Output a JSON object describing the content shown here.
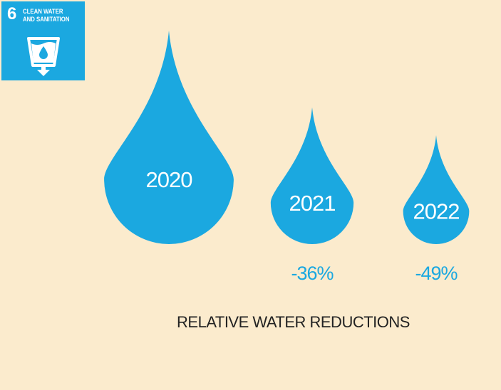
{
  "badge": {
    "number": "6",
    "title_line1": "CLEAN WATER",
    "title_line2": "AND SANITATION",
    "icon": "water-glass-icon",
    "color": "#1ba8e0"
  },
  "chart_data": {
    "type": "bar",
    "style": "water-drop pictograph",
    "title": "RELATIVE WATER REDUCTIONS",
    "categories": [
      "2020",
      "2021",
      "2022"
    ],
    "values": [
      100,
      64,
      51
    ],
    "change_labels": [
      "",
      "-36%",
      "-49%"
    ],
    "unit": "relative to 2020 (%)",
    "legend": "none",
    "grid": false,
    "drop_color": "#1ba8e0",
    "background_color": "#fbebcd"
  }
}
